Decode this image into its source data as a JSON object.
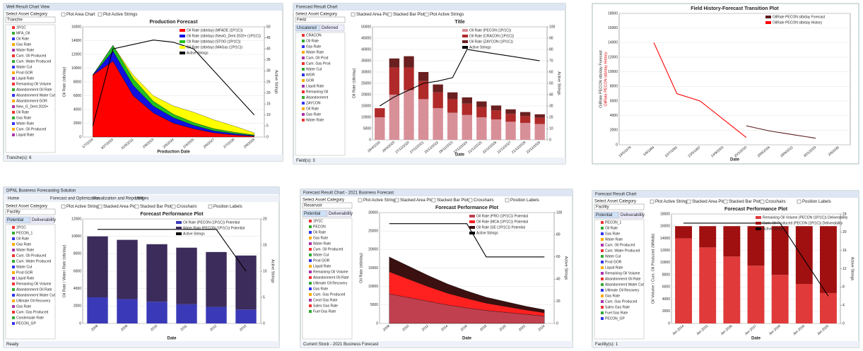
{
  "panels": [
    {
      "window_title": "Well Result Chart View",
      "category_label": "Select Asset Category",
      "category_value": "Tranche",
      "checkboxes": [
        "Plot Area Chart",
        "Plot Active Strings"
      ],
      "sidebar": [
        "1P/1C",
        "MFA_Oil",
        "Oil Rate",
        "Gas Rate",
        "Water Rate",
        "Cum. Oil Produced",
        "Cum. Water Produced",
        "Water Cut",
        "Prod GOR",
        "Liquid Rate",
        "Remaining Oil Volume",
        "Abandonment Oil Rate",
        "Abandonment Water Cut",
        "Abandonment GOR",
        "New_G_Dent 2020+",
        "Oil Rate",
        "Gas Rate",
        "Water Rate",
        "Cum. Oil Produced",
        "Liquid Rate"
      ],
      "status": "Tranche(s): 6",
      "chart": {
        "type": "area",
        "title": "Production Forecast",
        "xlabel": "Production Date",
        "ylabel": "Oil Rate (stb/day)",
        "y2label": "Active Strings",
        "categories": [
          "1/7/2018",
          "30/7/2020",
          "31/8/2021",
          "2/6/2023",
          "2/6/2024",
          "2/4/2025",
          "2/6/2027",
          "2/7/2028",
          "2/8/2029"
        ],
        "series": [
          {
            "name": "Oil Rate (stb/day) (MFADE (1P/1C))",
            "color": "#ff0000",
            "values": [
              9000,
              11000,
              6000,
              3500,
              2000,
              1200,
              600,
              300,
              100
            ]
          },
          {
            "name": "Oil Rate (stb/day) (NewG_Dent 2020+ (1P/1C))",
            "color": "#1010e0",
            "values": [
              0,
              1500,
              1500,
              1000,
              800,
              500,
              300,
              200,
              100
            ]
          },
          {
            "name": "Oil Rate (stb/day) (STOG (1P/1C))",
            "color": "#20c020",
            "values": [
              0,
              800,
              1000,
              700,
              500,
              400,
              300,
              200,
              100
            ]
          },
          {
            "name": "Oil Rate (stb/day) (MAGas (1P/1C))",
            "color": "#ffff00",
            "values": [
              0,
              0,
              500,
              800,
              1200,
              1500,
              1300,
              900,
              300
            ]
          },
          {
            "name": "Active Strings",
            "color": "#000000",
            "axis": "y2",
            "values": [
              5,
              40,
              42,
              44,
              43,
              40,
              30,
              20,
              10
            ]
          }
        ],
        "ylim": [
          0,
          16000
        ],
        "yticks": [
          0,
          2000,
          4000,
          6000,
          8000,
          10000,
          12000,
          14000,
          16000
        ],
        "y2lim": [
          0,
          50
        ],
        "y2ticks": [
          0,
          5,
          10,
          15,
          20,
          25,
          30,
          35,
          40,
          45,
          50
        ]
      }
    },
    {
      "window_title": "Forecast Result Chart",
      "category_label": "Select Asset Category",
      "category_value": "Field",
      "checkboxes": [
        "Stacked Area Plot",
        "Stacked Bar Plot",
        "Plot Active Strings"
      ],
      "tabs": [
        "Uncatered",
        "Deferred"
      ],
      "sidebar": [
        "CRACON",
        "Oil Rate",
        "Gas Rate",
        "Water Rate",
        "Cum. Oil Prod",
        "Cum. Gas Prod",
        "Water Cut",
        "WGR",
        "GOR",
        "Liquid Rate",
        "Remaining Oil",
        "Abandonment",
        "ZAYCON",
        "Oil Rate",
        "Gas Rate",
        "Water Rate"
      ],
      "status": "Field(s): 3",
      "chart": {
        "type": "bar",
        "title": "Title",
        "xlabel": "Date",
        "ylabel": "Oil Rate (stb/day)",
        "y2label": "Active Strings",
        "categories": [
          "26/4/2019",
          "26/4/2020",
          "27/12/2020",
          "27/12/2021",
          "25/12/2022",
          "28/12/2023",
          "27/12/2024",
          "21/12/2025",
          "22/12/2026",
          "21/12/2027",
          "21/12/2028",
          "22/12/2029"
        ],
        "series": [
          {
            "name": "Oil Rate (PECON (1P/1C))",
            "color": "#d89098",
            "values": [
              10000,
              20000,
              22000,
              18000,
              14000,
              12000,
              11000,
              10000,
              9000,
              8000,
              7500,
              7000
            ]
          },
          {
            "name": "Oil Rate (CRACON (1P/1C))",
            "color": "#b02a2a",
            "values": [
              4000,
              12000,
              10000,
              8000,
              7000,
              6000,
              5000,
              4500,
              4000,
              3500,
              3000,
              2800
            ]
          },
          {
            "name": "Oil Rate (ZAYCON (1P/1C))",
            "color": "#6a2020",
            "values": [
              0,
              4000,
              5000,
              4000,
              3500,
              3000,
              2800,
              2500,
              2200,
              2000,
              1800,
              1500
            ]
          },
          {
            "name": "Active Strings",
            "color": "#000000",
            "axis": "y2",
            "values": [
              30,
              38,
              44,
              50,
              52,
              55,
              80,
              78,
              76,
              74,
              72,
              70
            ]
          }
        ],
        "ylim": [
          0,
          50000
        ],
        "yticks": [
          0,
          5000,
          10000,
          15000,
          20000,
          25000,
          30000,
          35000,
          40000,
          45000,
          50000
        ],
        "y2lim": [
          0,
          100
        ],
        "y2ticks": [
          0,
          10,
          20,
          30,
          40,
          50,
          60,
          70,
          80,
          90,
          100
        ]
      }
    },
    {
      "chart": {
        "type": "line",
        "title": "Field History-Forecast Transition Plot",
        "xlabel": "Date",
        "ylabel": "OilRate PECON stb/day Forecast",
        "ylabel2": "OilRate PECON stb/day History",
        "categories": [
          "19/5/1978",
          "1/6/1984",
          "10/7/1991",
          "23/5/1997",
          "24/9/2003",
          "25/1/2010",
          "28/6/2016",
          "28/9/2022",
          "30/1/2029",
          "2/6/2035"
        ],
        "series": [
          {
            "name": "OilRate PECON stb/day Forecast",
            "color": "#5a1a1a",
            "values": [
              null,
              null,
              null,
              null,
              null,
              2600,
              1900,
              1400,
              900,
              null
            ]
          },
          {
            "name": "OilRate PECON stb/day History",
            "color": "#ff0000",
            "values": [
              null,
              14000,
              7000,
              6000,
              3500,
              1000,
              null,
              null,
              null,
              null
            ]
          }
        ],
        "ylim": [
          0,
          18000
        ],
        "yticks": [
          0,
          2000,
          4000,
          6000,
          8000,
          10000,
          12000,
          14000,
          16000,
          18000
        ]
      }
    },
    {
      "window_title": "DPNL Business Forecasting Solution",
      "menu": [
        "Home",
        "Forecast and Optimization",
        "Visualization and Reporting",
        "Utilities"
      ],
      "category_label": "Select Asset Category",
      "category_value": "Facility",
      "checkboxes": [
        "Plot Active Strings",
        "Stacked Area Plot",
        "Stacked Bar Plot",
        "Crosshairs",
        "Position Labels"
      ],
      "tabs": [
        "Potential",
        "Deliverability"
      ],
      "sidebar": [
        "1P/1C",
        "PECON_1",
        "Oil Rate",
        "Gas Rate",
        "Water Rate",
        "Cum. Oil Produced",
        "Cum. Water Produced",
        "Water Cut",
        "Prod GOR",
        "Liquid Rate",
        "Remaining Oil Volume",
        "Abandonment Oil Rate",
        "Abandonment Water Cut",
        "Ultimate Oil Recovery",
        "Gas Rate",
        "Cum. Gas Produced",
        "Condensate Rate",
        "PECON_GP"
      ],
      "status": "Ready",
      "chart": {
        "type": "bar",
        "title": "Forecast Performance Plot",
        "xlabel": "Date",
        "ylabel": "Oil Rate / Water Rate (stb/day)",
        "y2label": "Active Strings",
        "categories": [
          "2008",
          "2009",
          "2010",
          "2011",
          "2012",
          "2013"
        ],
        "series": [
          {
            "name": "Oil Rate (PECON (1P/1C)) Potential",
            "color": "#3a3ab8",
            "values": [
              3000,
              2800,
              2500,
              2200,
              1900,
              1600
            ]
          },
          {
            "name": "Water Rate (PECON (1P/1C)) Potential",
            "color": "#3c2c5c",
            "values": [
              7000,
              6800,
              6600,
              6500,
              6300,
              6200
            ]
          },
          {
            "name": "Active Strings",
            "color": "#000000",
            "axis": "y2",
            "values": [
              18,
              18,
              18,
              18,
              18,
              10
            ]
          }
        ],
        "ylim": [
          0,
          12000
        ],
        "yticks": [
          0,
          2000,
          4000,
          6000,
          8000,
          10000,
          12000
        ],
        "y2lim": [
          0,
          20
        ],
        "y2ticks": [
          0,
          5,
          10,
          15,
          20
        ]
      }
    },
    {
      "window_title": "Forecast Result Chart - 2021 Business Forecast",
      "category_label": "Select Asset Category",
      "category_value": "Reservoir",
      "checkboxes": [
        "Plot Active Strings",
        "Stacked Area Plot",
        "Stacked Bar Plot",
        "Crosshairs",
        "Position Labels"
      ],
      "tabs": [
        "Potential",
        "Deliverability"
      ],
      "sidebar": [
        "1P/1C",
        "PECON",
        "Oil Rate",
        "Gas Rate",
        "Water Rate",
        "Cum. Oil Produced",
        "Water Cut",
        "Prod GOR",
        "Liquid Rate",
        "Remaining Oil Volume",
        "Abandonment Oil Rate",
        "Ultimate Oil Recovery",
        "Gas Rate",
        "Cum. Gas Produced",
        "Cond Gas Rate",
        "Sales Gas Rate",
        "Fuel Gas Rate"
      ],
      "status": "Current Stock - 2021 Business Forecast",
      "chart": {
        "type": "area",
        "title": "Forecast Performance Plot",
        "xlabel": "Date",
        "ylabel": "Oil Rate (stb/day)",
        "y2label": "Active Strings",
        "categories": [
          "2008",
          "2010",
          "2012",
          "2014",
          "2016",
          "2018",
          "2020",
          "2022",
          "2024"
        ],
        "series": [
          {
            "name": "Oil Rate (PRO (1P/1C)) Potential",
            "color": "#c04050",
            "values": [
              8000,
              7000,
              6000,
              5000,
              4200,
              3500,
              3000,
              2500,
              2000
            ]
          },
          {
            "name": "Oil Rate (MCA (1P/1C)) Potential",
            "color": "#ff2020",
            "values": [
              6000,
              5000,
              4000,
              3200,
              2600,
              2000,
              1600,
              1200,
              900
            ]
          },
          {
            "name": "Oil Rate (SE (1P/1C)) Potential",
            "color": "#3a1010",
            "values": [
              4000,
              3500,
              3000,
              2500,
              2000,
              1600,
              1300,
              1000,
              800
            ]
          },
          {
            "name": "Active Strings",
            "color": "#000000",
            "axis": "y2",
            "values": [
              90,
              90,
              90,
              90,
              90,
              60,
              60,
              60,
              60
            ]
          }
        ],
        "ylim": [
          0,
          30000
        ],
        "yticks": [
          0,
          5000,
          10000,
          15000,
          20000,
          25000,
          30000
        ],
        "y2lim": [
          0,
          100
        ],
        "y2ticks": [
          0,
          20,
          40,
          60,
          80,
          100
        ]
      }
    },
    {
      "window_title": "Forecast Result Chart",
      "category_label": "Select Asset Category",
      "category_value": "Facility",
      "checkboxes": [
        "Plot Active Strings",
        "Stacked Area Plot",
        "Stacked Bar Plot",
        "Crosshairs",
        "Position Labels"
      ],
      "tabs": [
        "Potential",
        "Deliverability"
      ],
      "sidebar": [
        "PECON_1",
        "Oil Rate",
        "Gas Rate",
        "Water Rate",
        "Cum. Oil Produced",
        "Cum. Water Produced",
        "Water Cut",
        "Prod GOR",
        "Liquid Rate",
        "Remaining Oil Volume",
        "Abandonment Oil Rate",
        "Abandonment Water Cut",
        "Ultimate Oil Recovery",
        "Gas Rate",
        "Cum. Gas Produced",
        "Sales Gas Rate",
        "Fuel Gas Rate",
        "PECON_GP"
      ],
      "status": "Facility(s): 1",
      "chart": {
        "type": "bar",
        "title": "Forecast Performance Plot",
        "xlabel": "Date",
        "ylabel": "Oil Volume / Cum. Oil Produced (MMstb)",
        "y2label": "Active Strings",
        "categories": [
          "Jan 2014",
          "Jan 2015",
          "Jan 2016",
          "Jan 2017",
          "Jan 2018",
          "Jan 2019",
          "Jan 2020"
        ],
        "series": [
          {
            "name": "Remaining Oil Volume (PECON (1P/1C)) Deliverability",
            "color": "#e03a3a",
            "values": [
              14000,
              12500,
              11000,
              9500,
              8000,
              6500,
              5000
            ]
          },
          {
            "name": "Cum. Oil Produced (PECON (1P/1C)) Deliverability",
            "color": "#a01010",
            "values": [
              2000,
              3500,
              5000,
              6500,
              8000,
              9500,
              11000
            ]
          },
          {
            "name": "Active Strings",
            "color": "#000000",
            "axis": "y2",
            "values": [
              22,
              22,
              22,
              22,
              22,
              14,
              6
            ]
          }
        ],
        "ylim": [
          0,
          18000
        ],
        "yticks": [
          0,
          2000,
          4000,
          6000,
          8000,
          10000,
          12000,
          14000,
          16000,
          18000
        ],
        "y2lim": [
          0,
          24
        ],
        "y2ticks": [
          0,
          4,
          8,
          12,
          16,
          20,
          24
        ]
      }
    }
  ]
}
